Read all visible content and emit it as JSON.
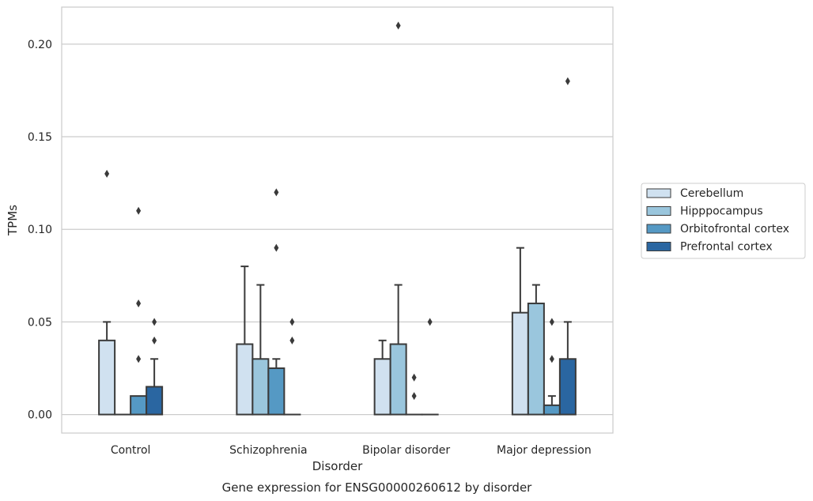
{
  "chart_data": {
    "type": "bar",
    "title": "",
    "caption": "Gene expression for ENSG00000260612 by disorder",
    "xlabel": "Disorder",
    "ylabel": "TPMs",
    "ylim": [
      -0.01,
      0.22
    ],
    "yticks": [
      0.0,
      0.05,
      0.1,
      0.15,
      0.2
    ],
    "ytick_labels": [
      "0.00",
      "0.05",
      "0.10",
      "0.15",
      "0.20"
    ],
    "grid": true,
    "legend_position": "right",
    "categories": [
      "Control",
      "Schizophrenia",
      "Bipolar disorder",
      "Major depression"
    ],
    "series": [
      {
        "name": "Cerebellum",
        "color": "#d0e1f0",
        "values": [
          0.04,
          0.038,
          0.03,
          0.055
        ],
        "error_upper": [
          0.05,
          0.08,
          0.04,
          0.09
        ],
        "outliers": [
          [
            0.13
          ],
          [],
          [],
          []
        ]
      },
      {
        "name": "Hipppocampus",
        "color": "#9ac6dd",
        "values": [
          0.0,
          0.03,
          0.038,
          0.06
        ],
        "error_upper": [
          null,
          0.07,
          0.07,
          0.07
        ],
        "outliers": [
          [],
          [],
          [
            0.21
          ],
          []
        ]
      },
      {
        "name": "Orbitofrontal cortex",
        "color": "#5599c4",
        "values": [
          0.01,
          0.025,
          0.0,
          0.005
        ],
        "error_upper": [
          null,
          0.03,
          null,
          0.01
        ],
        "outliers": [
          [
            0.11,
            0.06,
            0.03
          ],
          [
            0.12,
            0.09
          ],
          [
            0.02,
            0.01
          ],
          [
            0.05,
            0.03
          ]
        ]
      },
      {
        "name": "Prefrontal cortex",
        "color": "#2a66a1",
        "values": [
          0.015,
          0.0,
          0.0,
          0.03
        ],
        "error_upper": [
          0.03,
          null,
          null,
          0.05
        ],
        "outliers": [
          [
            0.05,
            0.04
          ],
          [
            0.05,
            0.04
          ],
          [
            0.05
          ],
          [
            0.18
          ]
        ]
      }
    ]
  }
}
